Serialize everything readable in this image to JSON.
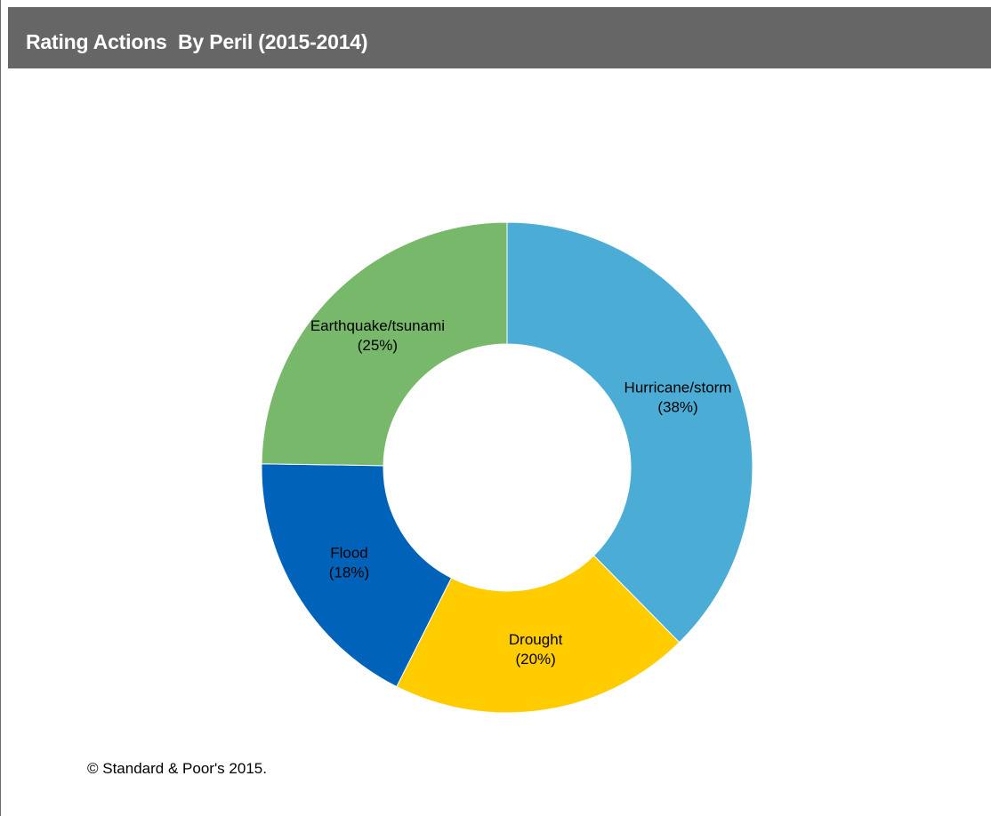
{
  "header": {
    "title": "Rating Actions  By Peril (2015-2014)"
  },
  "chart_data": {
    "type": "pie",
    "donut": true,
    "title": "Rating Actions  By Peril (2015-2014)",
    "slices": [
      {
        "label": "Hurricane/storm",
        "value": 38,
        "value_label": "(38%)",
        "color": "#4badd6"
      },
      {
        "label": "Drought",
        "value": 20,
        "value_label": "(20%)",
        "color": "#ffcc00"
      },
      {
        "label": "Flood",
        "value": 18,
        "value_label": "(18%)",
        "color": "#0063b9"
      },
      {
        "label": "Earthquake/tsunami",
        "value": 25,
        "value_label": "(25%)",
        "color": "#78b86a"
      }
    ]
  },
  "footnote": "© Standard & Poor's 2015."
}
